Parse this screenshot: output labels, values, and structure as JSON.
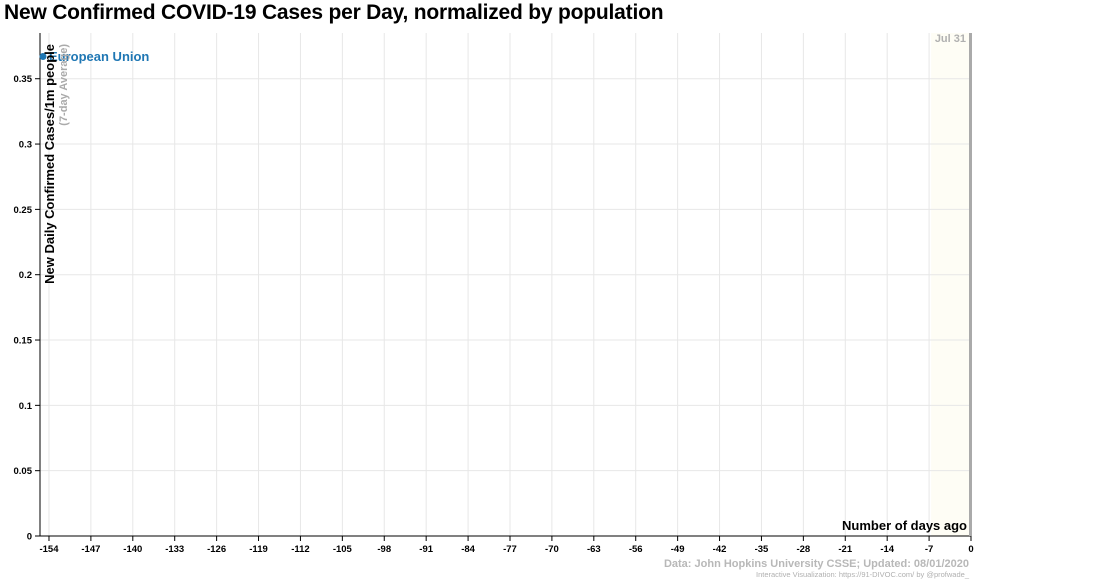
{
  "chart_data": {
    "type": "line",
    "title": "New Confirmed COVID-19 Cases per Day, normalized by population",
    "ylabel": "New Daily Confirmed Cases/1m people",
    "ylabel_sub": "(7-day Average)",
    "xlabel": "Number of days ago",
    "date_marker": "Jul 31",
    "x_ticks": [
      -154,
      -147,
      -140,
      -133,
      -126,
      -119,
      -112,
      -105,
      -98,
      -91,
      -84,
      -77,
      -70,
      -63,
      -56,
      -49,
      -42,
      -35,
      -28,
      -21,
      -14,
      -7,
      0
    ],
    "y_ticks": [
      0,
      0.05,
      0.1,
      0.15,
      0.2,
      0.25,
      0.3,
      0.35
    ],
    "xlim": [
      -155.5,
      0
    ],
    "ylim": [
      0,
      0.385
    ],
    "grid": true,
    "series": [
      {
        "name": "European Union",
        "color": "#1f77b4",
        "x": [
          -155
        ],
        "y": [
          0.367
        ]
      }
    ]
  },
  "footer": {
    "source": "Data: John Hopkins University CSSE; Updated: 08/01/2020",
    "credit": "Interactive Visualization: https://91-DIVOC.com/ by @profwade_"
  }
}
